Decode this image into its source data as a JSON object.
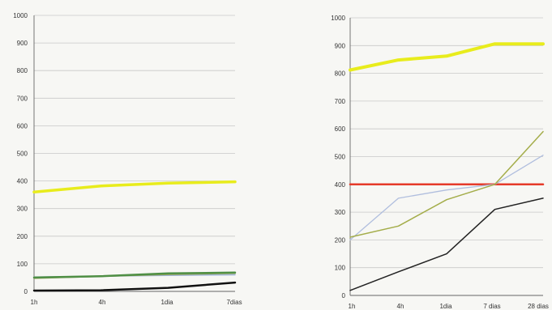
{
  "chart_data": [
    {
      "type": "line",
      "categories": [
        "1h",
        "4h",
        "1dia",
        "7dias"
      ],
      "ylim": [
        0,
        1000
      ],
      "yticks": [
        0,
        100,
        200,
        300,
        400,
        500,
        600,
        700,
        800,
        900,
        1000
      ],
      "grid": true,
      "legend": "none",
      "series": [
        {
          "color": "#e8ec1c",
          "width": 3.5,
          "values": [
            360,
            382,
            392,
            397
          ]
        },
        {
          "color": "#9ab0d8",
          "width": 1.5,
          "values": [
            52,
            55,
            58,
            60
          ]
        },
        {
          "color": "#a0a85a",
          "width": 2.0,
          "values": [
            48,
            55,
            62,
            66
          ]
        },
        {
          "color": "#4f8f45",
          "width": 2.5,
          "values": [
            50,
            55,
            65,
            68
          ]
        },
        {
          "color": "#111111",
          "width": 2.5,
          "values": [
            3,
            4,
            13,
            32
          ]
        }
      ]
    },
    {
      "type": "line",
      "categories": [
        "1h",
        "4h",
        "1dia",
        "7 dias",
        "28 dias"
      ],
      "ylim": [
        0,
        1000
      ],
      "yticks": [
        0,
        100,
        200,
        300,
        400,
        500,
        600,
        700,
        800,
        900,
        1000
      ],
      "grid": true,
      "legend": "none",
      "series": [
        {
          "color": "#e8ec1c",
          "width": 4.0,
          "values": [
            812,
            848,
            862,
            906,
            906
          ]
        },
        {
          "color": "#e53b2a",
          "width": 2.5,
          "values": [
            400,
            400,
            400,
            400,
            400
          ]
        },
        {
          "color": "#b0bede",
          "width": 1.3,
          "values": [
            200,
            350,
            380,
            400,
            505
          ]
        },
        {
          "color": "#a4ad4a",
          "width": 1.5,
          "values": [
            210,
            250,
            345,
            400,
            590
          ]
        },
        {
          "color": "#222222",
          "width": 1.5,
          "values": [
            18,
            85,
            150,
            310,
            350
          ]
        }
      ]
    }
  ]
}
